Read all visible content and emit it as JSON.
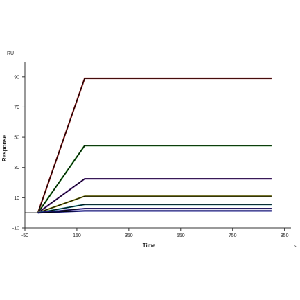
{
  "chart_data": {
    "type": "line",
    "title": "",
    "xlabel": "Time",
    "ylabel": "Response",
    "x_unit": "s",
    "y_unit": "RU",
    "xlim": [
      -50,
      975
    ],
    "ylim": [
      -10,
      100
    ],
    "xticks": [
      -50,
      150,
      350,
      550,
      750,
      950
    ],
    "yticks": [
      -10,
      10,
      30,
      50,
      70,
      90
    ],
    "grid": false,
    "legend": "none",
    "association_start": 0,
    "association_end": 180,
    "dissociation_end": 900,
    "baseline": {
      "x": [
        -50,
        0
      ],
      "y": [
        0,
        0
      ]
    },
    "series": [
      {
        "color": "#8b1a1a",
        "values": {
          "x": [
            0,
            180,
            900
          ],
          "y": [
            0,
            89,
            89
          ]
        }
      },
      {
        "color": "#1a7a1a",
        "values": {
          "x": [
            0,
            180,
            900
          ],
          "y": [
            0,
            44.5,
            44.5
          ]
        }
      },
      {
        "color": "#5a2a8a",
        "values": {
          "x": [
            0,
            180,
            900
          ],
          "y": [
            0,
            22.5,
            22.5
          ]
        }
      },
      {
        "color": "#8a8a1a",
        "values": {
          "x": [
            0,
            180,
            900
          ],
          "y": [
            0,
            11,
            11
          ]
        }
      },
      {
        "color": "#1a7a8a",
        "values": {
          "x": [
            0,
            180,
            900
          ],
          "y": [
            0,
            5.5,
            5.5
          ]
        }
      },
      {
        "color": "#3a2a9a",
        "values": {
          "x": [
            0,
            180,
            900
          ],
          "y": [
            0,
            2.8,
            2.8
          ]
        }
      },
      {
        "color": "#1a1a8a",
        "values": {
          "x": [
            0,
            180,
            900
          ],
          "y": [
            0,
            1.3,
            1.3
          ]
        }
      }
    ]
  }
}
